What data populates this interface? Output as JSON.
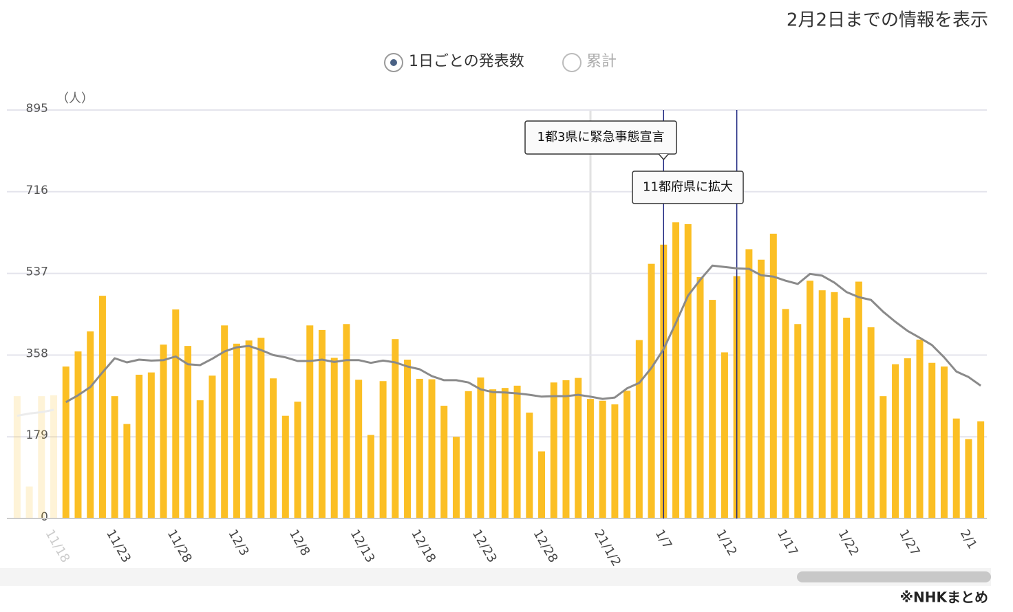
{
  "header": "2月2日までの情報を表示",
  "controls": {
    "options": [
      "1日ごとの発表数",
      "累計"
    ]
  },
  "source": "※NHKまとめ",
  "chart_data": {
    "type": "bar",
    "y_label": "（人）",
    "categories": [
      null,
      null,
      null,
      "11/18",
      null,
      null,
      null,
      null,
      "11/23",
      null,
      null,
      null,
      null,
      "11/28",
      null,
      null,
      null,
      null,
      "12/3",
      null,
      null,
      null,
      null,
      "12/8",
      null,
      null,
      null,
      null,
      "12/13",
      null,
      null,
      null,
      null,
      "12/18",
      null,
      null,
      null,
      null,
      "12/23",
      null,
      null,
      null,
      null,
      "12/28",
      null,
      null,
      null,
      null,
      "21/1/2",
      null,
      null,
      null,
      null,
      "1/7",
      null,
      null,
      null,
      null,
      "1/12",
      null,
      null,
      null,
      null,
      "1/17",
      null,
      null,
      null,
      null,
      "1/22",
      null,
      null,
      null,
      null,
      "1/27",
      null,
      null,
      null,
      null,
      "2/1",
      null
    ],
    "series": [
      {
        "type": "bar",
        "color": "#fbbf24",
        "values": [
          268,
          70,
          268,
          270,
          333,
          366,
          410,
          488,
          268,
          207,
          315,
          320,
          381,
          458,
          378,
          259,
          313,
          423,
          383,
          390,
          396,
          307,
          225,
          256,
          423,
          413,
          352,
          426,
          304,
          183,
          301,
          393,
          348,
          306,
          305,
          247,
          179,
          279,
          309,
          283,
          286,
          291,
          232,
          147,
          298,
          303,
          308,
          262,
          258,
          250,
          280,
          391,
          558,
          600,
          649,
          645,
          529,
          479,
          364,
          531,
          590,
          567,
          624,
          459,
          426,
          521,
          500,
          496,
          440,
          519,
          419,
          268,
          338,
          351,
          392,
          341,
          333,
          219,
          174,
          213
        ]
      },
      {
        "type": "line",
        "color": "#8a8a8a",
        "values": [
          225,
          230,
          233,
          238,
          255,
          270,
          288,
          320,
          351,
          342,
          348,
          346,
          347,
          355,
          338,
          336,
          350,
          366,
          375,
          378,
          369,
          358,
          353,
          345,
          345,
          348,
          343,
          347,
          347,
          341,
          346,
          342,
          333,
          327,
          312,
          303,
          303,
          298,
          283,
          277,
          276,
          274,
          271,
          267,
          268,
          268,
          271,
          267,
          262,
          265,
          285,
          297,
          330,
          371,
          428,
          488,
          523,
          554,
          551,
          548,
          547,
          533,
          530,
          521,
          514,
          536,
          532,
          517,
          496,
          485,
          479,
          453,
          431,
          411,
          396,
          380,
          353,
          322,
          310,
          291
        ]
      }
    ],
    "annotations": [
      "1都3県に緊急事態宣言",
      "11都府県に拡大"
    ],
    "ylim": [
      0,
      895
    ],
    "yticks": [
      0,
      179,
      358,
      537,
      716,
      895
    ],
    "grid": true
  }
}
